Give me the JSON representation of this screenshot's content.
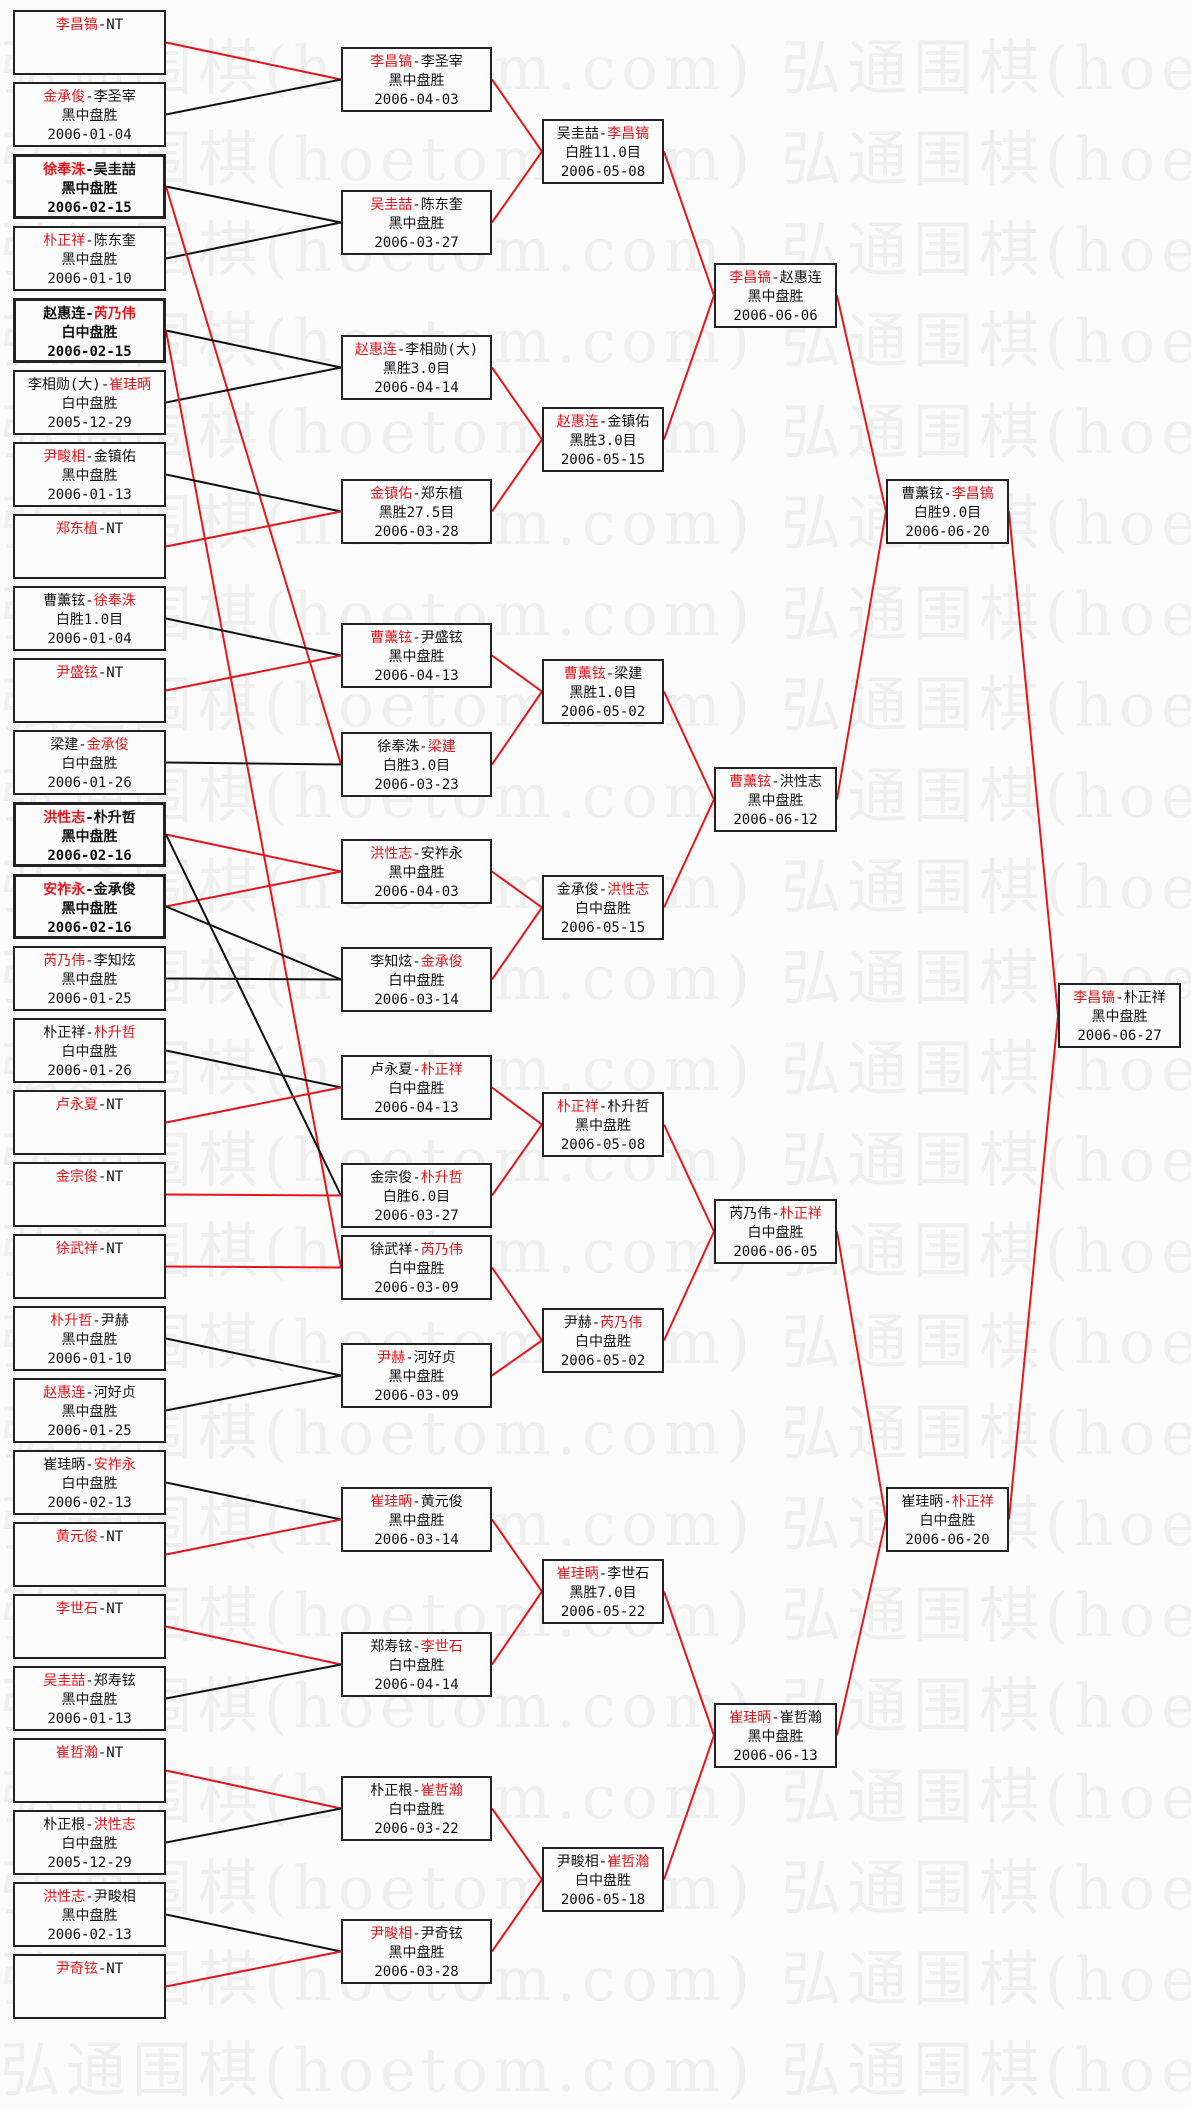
{
  "watermark": "弘通围棋(hoetom.com) 弘通围棋(hoetom.com)",
  "separator": "-",
  "colors": {
    "winner": "#e8141a",
    "loser_line": "#111111",
    "box_border": "#222222",
    "background": "#fbfbfb"
  },
  "rounds": [
    [
      {
        "players": [
          "李昌镐",
          "NT"
        ],
        "red": 0,
        "result": "",
        "date": ""
      },
      {
        "players": [
          "金承俊",
          "李圣宰"
        ],
        "red": 0,
        "result": "黑中盘胜",
        "date": "2006-01-04"
      },
      {
        "players": [
          "徐奉洙",
          "吴圭喆"
        ],
        "red": 0,
        "result": "黑中盘胜",
        "date": "2006-02-15",
        "bold": true
      },
      {
        "players": [
          "朴正祥",
          "陈东奎"
        ],
        "red": 0,
        "result": "黑中盘胜",
        "date": "2006-01-10"
      },
      {
        "players": [
          "赵惠连",
          "芮乃伟"
        ],
        "red": 1,
        "result": "白中盘胜",
        "date": "2006-02-15",
        "bold": true
      },
      {
        "players": [
          "李相勋(大)",
          "崔珪昞"
        ],
        "red": 1,
        "result": "白中盘胜",
        "date": "2005-12-29"
      },
      {
        "players": [
          "尹畯相",
          "金镇佑"
        ],
        "red": 0,
        "result": "黑中盘胜",
        "date": "2006-01-13"
      },
      {
        "players": [
          "郑东植",
          "NT"
        ],
        "red": 0,
        "result": "",
        "date": ""
      },
      {
        "players": [
          "曹薰铉",
          "徐奉洙"
        ],
        "red": 1,
        "result": "白胜1.0目",
        "date": "2006-01-04"
      },
      {
        "players": [
          "尹盛铉",
          "NT"
        ],
        "red": 0,
        "result": "",
        "date": ""
      },
      {
        "players": [
          "梁建",
          "金承俊"
        ],
        "red": 1,
        "result": "白中盘胜",
        "date": "2006-01-26"
      },
      {
        "players": [
          "洪性志",
          "朴升哲"
        ],
        "red": 0,
        "result": "黑中盘胜",
        "date": "2006-02-16",
        "bold": true
      },
      {
        "players": [
          "安祚永",
          "金承俊"
        ],
        "red": 0,
        "result": "黑中盘胜",
        "date": "2006-02-16",
        "bold": true
      },
      {
        "players": [
          "芮乃伟",
          "李知炫"
        ],
        "red": 0,
        "result": "黑中盘胜",
        "date": "2006-01-25"
      },
      {
        "players": [
          "朴正祥",
          "朴升哲"
        ],
        "red": 1,
        "result": "白中盘胜",
        "date": "2006-01-26"
      },
      {
        "players": [
          "卢永夏",
          "NT"
        ],
        "red": 0,
        "result": "",
        "date": ""
      },
      {
        "players": [
          "金宗俊",
          "NT"
        ],
        "red": 0,
        "result": "",
        "date": ""
      },
      {
        "players": [
          "徐武祥",
          "NT"
        ],
        "red": 0,
        "result": "",
        "date": ""
      },
      {
        "players": [
          "朴升哲",
          "尹赫"
        ],
        "red": 0,
        "result": "黑中盘胜",
        "date": "2006-01-10"
      },
      {
        "players": [
          "赵惠连",
          "河好贞"
        ],
        "red": 0,
        "result": "黑中盘胜",
        "date": "2006-01-25"
      },
      {
        "players": [
          "崔珪昞",
          "安祚永"
        ],
        "red": 1,
        "result": "白中盘胜",
        "date": "2006-02-13"
      },
      {
        "players": [
          "黄元俊",
          "NT"
        ],
        "red": 0,
        "result": "",
        "date": ""
      },
      {
        "players": [
          "李世石",
          "NT"
        ],
        "red": 0,
        "result": "",
        "date": ""
      },
      {
        "players": [
          "吴圭喆",
          "郑寿铉"
        ],
        "red": 0,
        "result": "黑中盘胜",
        "date": "2006-01-13"
      },
      {
        "players": [
          "崔哲瀚",
          "NT"
        ],
        "red": 0,
        "result": "",
        "date": ""
      },
      {
        "players": [
          "朴正根",
          "洪性志"
        ],
        "red": 1,
        "result": "白中盘胜",
        "date": "2005-12-29"
      },
      {
        "players": [
          "洪性志",
          "尹畯相"
        ],
        "red": 0,
        "result": "黑中盘胜",
        "date": "2006-02-13"
      },
      {
        "players": [
          "尹奇铉",
          "NT"
        ],
        "red": 0,
        "result": "",
        "date": ""
      }
    ],
    [
      {
        "players": [
          "李昌镐",
          "李圣宰"
        ],
        "red": 0,
        "result": "黑中盘胜",
        "date": "2006-04-03"
      },
      {
        "players": [
          "吴圭喆",
          "陈东奎"
        ],
        "red": 0,
        "result": "黑中盘胜",
        "date": "2006-03-27"
      },
      {
        "players": [
          "赵惠连",
          "李相勋(大)"
        ],
        "red": 0,
        "result": "黑胜3.0目",
        "date": "2006-04-14"
      },
      {
        "players": [
          "金镇佑",
          "郑东植"
        ],
        "red": 0,
        "result": "黑胜27.5目",
        "date": "2006-03-28"
      },
      {
        "players": [
          "曹薰铉",
          "尹盛铉"
        ],
        "red": 0,
        "result": "黑中盘胜",
        "date": "2006-04-13"
      },
      {
        "players": [
          "徐奉洙",
          "梁建"
        ],
        "red": 1,
        "result": "白胜3.0目",
        "date": "2006-03-23"
      },
      {
        "players": [
          "洪性志",
          "安祚永"
        ],
        "red": 0,
        "result": "黑中盘胜",
        "date": "2006-04-03"
      },
      {
        "players": [
          "李知炫",
          "金承俊"
        ],
        "red": 1,
        "result": "白中盘胜",
        "date": "2006-03-14"
      },
      {
        "players": [
          "卢永夏",
          "朴正祥"
        ],
        "red": 1,
        "result": "白中盘胜",
        "date": "2006-04-13"
      },
      {
        "players": [
          "金宗俊",
          "朴升哲"
        ],
        "red": 1,
        "result": "白胜6.0目",
        "date": "2006-03-27"
      },
      {
        "players": [
          "徐武祥",
          "芮乃伟"
        ],
        "red": 1,
        "result": "白中盘胜",
        "date": "2006-03-09"
      },
      {
        "players": [
          "尹赫",
          "河好贞"
        ],
        "red": 0,
        "result": "黑中盘胜",
        "date": "2006-03-09"
      },
      {
        "players": [
          "崔珪昞",
          "黄元俊"
        ],
        "red": 0,
        "result": "黑中盘胜",
        "date": "2006-03-14"
      },
      {
        "players": [
          "郑寿铉",
          "李世石"
        ],
        "red": 1,
        "result": "白中盘胜",
        "date": "2006-04-14"
      },
      {
        "players": [
          "朴正根",
          "崔哲瀚"
        ],
        "red": 1,
        "result": "白中盘胜",
        "date": "2006-03-22"
      },
      {
        "players": [
          "尹畯相",
          "尹奇铉"
        ],
        "red": 0,
        "result": "黑中盘胜",
        "date": "2006-03-28"
      }
    ],
    [
      {
        "players": [
          "吴圭喆",
          "李昌镐"
        ],
        "red": 1,
        "result": "白胜11.0目",
        "date": "2006-05-08"
      },
      {
        "players": [
          "赵惠连",
          "金镇佑"
        ],
        "red": 0,
        "result": "黑胜3.0目",
        "date": "2006-05-15"
      },
      {
        "players": [
          "曹薰铉",
          "梁建"
        ],
        "red": 0,
        "result": "黑胜1.0目",
        "date": "2006-05-02"
      },
      {
        "players": [
          "金承俊",
          "洪性志"
        ],
        "red": 1,
        "result": "白中盘胜",
        "date": "2006-05-15"
      },
      {
        "players": [
          "朴正祥",
          "朴升哲"
        ],
        "red": 0,
        "result": "黑中盘胜",
        "date": "2006-05-08"
      },
      {
        "players": [
          "尹赫",
          "芮乃伟"
        ],
        "red": 1,
        "result": "白中盘胜",
        "date": "2006-05-02"
      },
      {
        "players": [
          "崔珪昞",
          "李世石"
        ],
        "red": 0,
        "result": "黑胜7.0目",
        "date": "2006-05-22"
      },
      {
        "players": [
          "尹畯相",
          "崔哲瀚"
        ],
        "red": 1,
        "result": "白中盘胜",
        "date": "2006-05-18"
      }
    ],
    [
      {
        "players": [
          "李昌镐",
          "赵惠连"
        ],
        "red": 0,
        "result": "黑中盘胜",
        "date": "2006-06-06"
      },
      {
        "players": [
          "曹薰铉",
          "洪性志"
        ],
        "red": 0,
        "result": "黑中盘胜",
        "date": "2006-06-12"
      },
      {
        "players": [
          "芮乃伟",
          "朴正祥"
        ],
        "red": 1,
        "result": "白中盘胜",
        "date": "2006-06-05"
      },
      {
        "players": [
          "崔珪昞",
          "崔哲瀚"
        ],
        "red": 0,
        "result": "黑中盘胜",
        "date": "2006-06-13"
      }
    ],
    [
      {
        "players": [
          "曹薰铉",
          "李昌镐"
        ],
        "red": 1,
        "result": "白胜9.0目",
        "date": "2006-06-20"
      },
      {
        "players": [
          "崔珪昞",
          "朴正祥"
        ],
        "red": 1,
        "result": "白中盘胜",
        "date": "2006-06-20"
      }
    ],
    [
      {
        "players": [
          "李昌镐",
          "朴正祥"
        ],
        "red": 0,
        "result": "黑中盘胜",
        "date": "2006-06-27"
      }
    ]
  ],
  "first_round_links": [
    [
      0,
      0,
      "red"
    ],
    [
      1,
      0,
      "black"
    ],
    [
      2,
      1,
      "black"
    ],
    [
      3,
      1,
      "black"
    ],
    [
      2,
      5,
      "red"
    ],
    [
      4,
      2,
      "black"
    ],
    [
      5,
      2,
      "black"
    ],
    [
      4,
      10,
      "red"
    ],
    [
      6,
      3,
      "black"
    ],
    [
      7,
      3,
      "red"
    ],
    [
      8,
      4,
      "black"
    ],
    [
      9,
      4,
      "red"
    ],
    [
      10,
      5,
      "black"
    ],
    [
      11,
      6,
      "red"
    ],
    [
      12,
      6,
      "red"
    ],
    [
      11,
      9,
      "black"
    ],
    [
      12,
      7,
      "black"
    ],
    [
      13,
      7,
      "black"
    ],
    [
      14,
      8,
      "black"
    ],
    [
      15,
      8,
      "red"
    ],
    [
      16,
      9,
      "red"
    ],
    [
      17,
      10,
      "red"
    ],
    [
      18,
      11,
      "black"
    ],
    [
      19,
      11,
      "black"
    ],
    [
      20,
      12,
      "black"
    ],
    [
      21,
      12,
      "red"
    ],
    [
      22,
      13,
      "red"
    ],
    [
      23,
      13,
      "black"
    ],
    [
      24,
      14,
      "red"
    ],
    [
      25,
      14,
      "black"
    ],
    [
      26,
      15,
      "black"
    ],
    [
      27,
      15,
      "red"
    ]
  ]
}
